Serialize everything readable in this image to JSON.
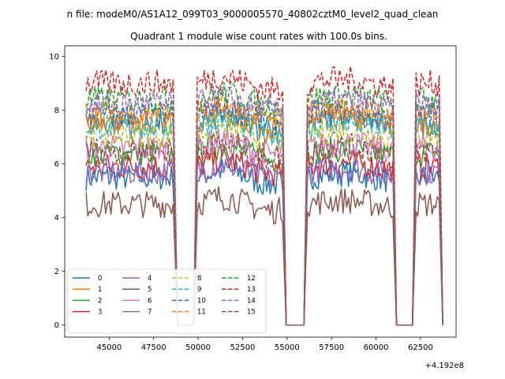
{
  "chart_data": {
    "type": "line",
    "suptitle": "n file: modeM0/AS1A12_099T03_9000005570_40802cztM0_level2_quad_clean",
    "title": "Quadrant 1 module wise count rates with 100.0s bins.",
    "xlabel": "",
    "ylabel": "",
    "x_offset_label": "+4.192e8",
    "xlim": [
      42500,
      64500
    ],
    "ylim": [
      -0.45,
      10.4
    ],
    "xticks": [
      45000,
      47500,
      50000,
      52500,
      55000,
      57500,
      60000,
      62500
    ],
    "xtick_labels": [
      "45000",
      "47500",
      "50000",
      "52500",
      "55000",
      "57500",
      "60000",
      "62500"
    ],
    "yticks": [
      0,
      2,
      4,
      6,
      8,
      10
    ],
    "ytick_labels": [
      "0",
      "2",
      "4",
      "6",
      "8",
      "10"
    ],
    "grid": false,
    "legend_position": "lower-left",
    "legend_columns": 4,
    "segments": [
      {
        "x": [
          43700,
          48650
        ],
        "edge_right": "drop"
      },
      {
        "x": [
          49950,
          54750
        ],
        "edge_left": "rise",
        "edge_right": "drop"
      },
      {
        "x": [
          56150,
          60950
        ],
        "edge_left": "rise",
        "edge_right": "drop"
      },
      {
        "x": [
          62250,
          63550
        ],
        "edge_left": "rise",
        "edge_right": "drop"
      }
    ],
    "gaps": [
      {
        "x": [
          48850,
          49750
        ],
        "value": 0
      },
      {
        "x": [
          54950,
          55950
        ],
        "value": 0
      },
      {
        "x": [
          61150,
          62050
        ],
        "value": 0
      }
    ],
    "series": [
      {
        "name": "0",
        "color": "#1f77b4",
        "dash": "solid",
        "level": 5.5
      },
      {
        "name": "1",
        "color": "#ff7f0e",
        "dash": "solid",
        "level": 7.6
      },
      {
        "name": "2",
        "color": "#2ca02c",
        "dash": "solid",
        "level": 6.4
      },
      {
        "name": "3",
        "color": "#d62728",
        "dash": "solid",
        "level": 5.9
      },
      {
        "name": "4",
        "color": "#9467bd",
        "dash": "solid",
        "level": 5.7
      },
      {
        "name": "5",
        "color": "#8c564b",
        "dash": "solid",
        "level": 4.5
      },
      {
        "name": "6",
        "color": "#e377c2",
        "dash": "solid",
        "level": 6.6
      },
      {
        "name": "7",
        "color": "#7f7f7f",
        "dash": "solid",
        "level": 7.5
      },
      {
        "name": "8",
        "color": "#bcbd22",
        "dash": "dashed",
        "level": 7.1
      },
      {
        "name": "9",
        "color": "#17becf",
        "dash": "dashed",
        "level": 7.4
      },
      {
        "name": "10",
        "color": "#1f77b4",
        "dash": "dashed",
        "level": 7.8
      },
      {
        "name": "11",
        "color": "#ff7f0e",
        "dash": "dashed",
        "level": 7.9
      },
      {
        "name": "12",
        "color": "#2ca02c",
        "dash": "dashed",
        "level": 8.4
      },
      {
        "name": "13",
        "color": "#d62728",
        "dash": "dashed",
        "level": 9.0
      },
      {
        "name": "14",
        "color": "#9467bd",
        "dash": "dashed",
        "level": 8.2
      },
      {
        "name": "15",
        "color": "#8c564b",
        "dash": "dashed",
        "level": 6.5
      }
    ]
  }
}
